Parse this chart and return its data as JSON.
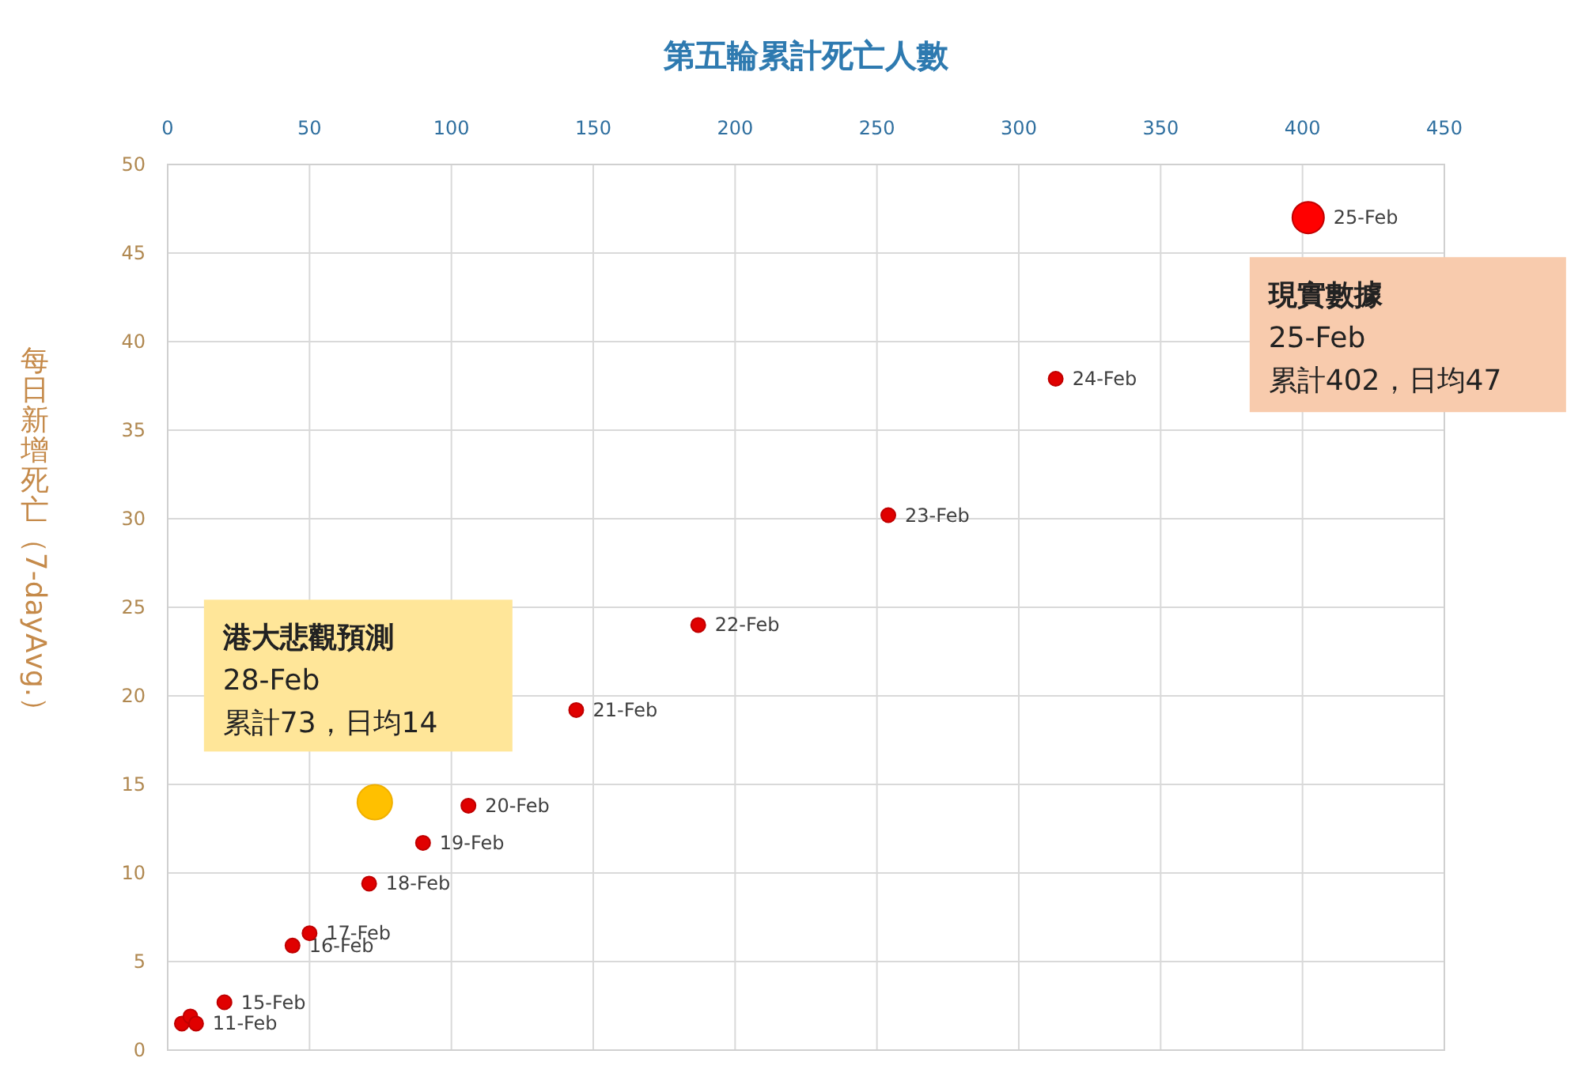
{
  "chart_data": {
    "type": "scatter",
    "xlabel": "第五輪累計死亡人數",
    "ylabel": "每日新增死亡（7-day Avg.）",
    "xlim": [
      0,
      450
    ],
    "xticks": [
      0,
      50,
      100,
      150,
      200,
      250,
      300,
      350,
      400,
      450
    ],
    "ylim": [
      0,
      50
    ],
    "yticks": [
      0,
      5,
      10,
      15,
      20,
      25,
      30,
      35,
      40,
      45,
      50
    ],
    "grid": true,
    "marker": "circle",
    "series": [
      {
        "color": "#e00000",
        "x": [
          5,
          8,
          10,
          20,
          44,
          50,
          71,
          90,
          106,
          144,
          187,
          254,
          313
        ],
        "values": [
          1.5,
          1.9,
          1.5,
          2.7,
          5.9,
          6.6,
          9.4,
          11.7,
          13.8,
          19.2,
          24.0,
          30.2,
          37.9
        ],
        "value_labels": [
          null,
          null,
          "11-Feb",
          "15-Feb",
          "16-Feb",
          "17-Feb",
          "18-Feb",
          "19-Feb",
          "20-Feb",
          "21-Feb",
          "22-Feb",
          "23-Feb",
          "24-Feb"
        ]
      },
      {
        "color": "#ff0000",
        "x": [
          402
        ],
        "values": [
          47
        ],
        "value_labels": [
          "25-Feb"
        ]
      },
      {
        "color": "#ffc000",
        "x": [
          73
        ],
        "values": [
          14
        ]
      }
    ],
    "annotations": [
      {
        "text": "**現實數據**\n25-Feb\n累計402，日均47",
        "x": 402,
        "y": 47
      },
      {
        "text": "**港大悲觀預測**\n28-Feb\n累計73，日均14",
        "x": 73,
        "y": 14
      }
    ]
  }
}
